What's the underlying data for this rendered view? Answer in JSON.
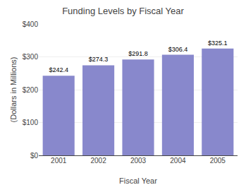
{
  "chart_data": {
    "type": "bar",
    "title": "Funding Levels by Fiscal Year",
    "xlabel": "Fiscal Year",
    "ylabel": "(Dollars in Millions)",
    "categories": [
      "2001",
      "2002",
      "2003",
      "2004",
      "2005"
    ],
    "values": [
      242.4,
      274.3,
      291.8,
      306.4,
      325.1
    ],
    "value_labels": [
      "$242.4",
      "$274.3",
      "$291.8",
      "$306.4",
      "$325.1"
    ],
    "data_labels": true,
    "color": "#8888cc",
    "ylim": [
      0,
      400
    ],
    "yticks": [
      {
        "value": 0,
        "label": "$0"
      },
      {
        "value": 100,
        "label": "$100"
      },
      {
        "value": 200,
        "label": "$200"
      },
      {
        "value": 300,
        "label": "$300"
      },
      {
        "value": 400,
        "label": "$400"
      }
    ],
    "grid": true
  }
}
